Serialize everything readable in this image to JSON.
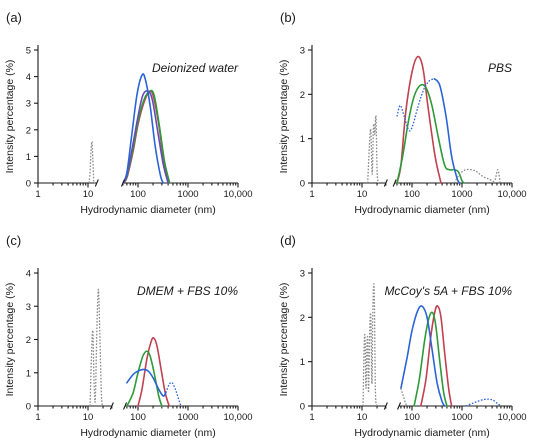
{
  "colors": {
    "red": "#c0414f",
    "green": "#2e9a3a",
    "purple": "#6a4bb5",
    "blue": "#2b64d6",
    "dotted": "#8a8a8a"
  },
  "chart_data": [
    {
      "type": "line",
      "panel": "(a)",
      "title": "Deionized water",
      "xlabel": "Hydrodynamic diameter (nm)",
      "ylabel": "Intensity percentage (%)",
      "xscale": "log",
      "xlim": [
        1,
        10000
      ],
      "xbreak": [
        15,
        50
      ],
      "ylim": [
        0,
        5
      ],
      "xticks": [
        "1",
        "10",
        "100",
        "1000",
        "10,000"
      ],
      "yticks": [
        "0",
        "1",
        "2",
        "3",
        "4",
        "5"
      ],
      "series": [
        {
          "color": "red",
          "style": "solid",
          "points": [
            [
              50,
              0
            ],
            [
              60,
              0.2
            ],
            [
              80,
              1.2
            ],
            [
              100,
              2.2
            ],
            [
              130,
              3.0
            ],
            [
              165,
              3.4
            ],
            [
              200,
              3.3
            ],
            [
              260,
              2.2
            ],
            [
              330,
              0.8
            ],
            [
              420,
              0
            ]
          ]
        },
        {
          "color": "green",
          "style": "solid",
          "points": [
            [
              50,
              0
            ],
            [
              60,
              0.25
            ],
            [
              80,
              1.3
            ],
            [
              100,
              2.3
            ],
            [
              130,
              3.1
            ],
            [
              170,
              3.45
            ],
            [
              210,
              3.3
            ],
            [
              270,
              2.1
            ],
            [
              340,
              0.8
            ],
            [
              430,
              0
            ]
          ]
        },
        {
          "color": "purple",
          "style": "solid",
          "points": [
            [
              50,
              0
            ],
            [
              60,
              0.3
            ],
            [
              80,
              1.5
            ],
            [
              100,
              2.5
            ],
            [
              125,
              3.3
            ],
            [
              160,
              3.45
            ],
            [
              195,
              3.1
            ],
            [
              250,
              1.9
            ],
            [
              320,
              0.7
            ],
            [
              400,
              0
            ]
          ]
        },
        {
          "color": "blue",
          "style": "solid",
          "points": [
            [
              50,
              0
            ],
            [
              60,
              0.4
            ],
            [
              75,
              1.8
            ],
            [
              95,
              3.3
            ],
            [
              120,
              4.05
            ],
            [
              140,
              3.9
            ],
            [
              175,
              2.9
            ],
            [
              220,
              1.4
            ],
            [
              280,
              0.3
            ],
            [
              320,
              0
            ]
          ]
        },
        {
          "color": "dotted",
          "style": "dotted",
          "points": [
            [
              10.5,
              0
            ],
            [
              11,
              0.4
            ],
            [
              11.5,
              1.2
            ],
            [
              12,
              1.55
            ],
            [
              12.5,
              0.9
            ],
            [
              13,
              0.1
            ],
            [
              13.5,
              0
            ]
          ]
        }
      ]
    },
    {
      "type": "line",
      "panel": "(b)",
      "title": "PBS",
      "xlabel": "Hydrodynamic diameter (nm)",
      "ylabel": "Intensity percentage (%)",
      "xscale": "log",
      "xlim": [
        1,
        10000
      ],
      "xbreak": [
        30,
        45
      ],
      "ylim": [
        0,
        3
      ],
      "xticks": [
        "1",
        "10",
        "100",
        "1000",
        "10,000"
      ],
      "yticks": [
        "0",
        "1",
        "2",
        "3"
      ],
      "series": [
        {
          "color": "red",
          "style": "solid",
          "points": [
            [
              50,
              0
            ],
            [
              60,
              0.4
            ],
            [
              75,
              1.6
            ],
            [
              100,
              2.5
            ],
            [
              130,
              2.85
            ],
            [
              165,
              2.6
            ],
            [
              210,
              1.7
            ],
            [
              290,
              0.6
            ],
            [
              380,
              0
            ]
          ]
        },
        {
          "color": "green",
          "style": "solid",
          "points": [
            [
              50,
              0
            ],
            [
              65,
              0.6
            ],
            [
              85,
              1.4
            ],
            [
              110,
              1.95
            ],
            [
              145,
              2.2
            ],
            [
              190,
              2.15
            ],
            [
              250,
              1.75
            ],
            [
              340,
              1.0
            ],
            [
              450,
              0.4
            ],
            [
              560,
              0.3
            ],
            [
              700,
              0.3
            ],
            [
              850,
              0.25
            ],
            [
              1000,
              0.05
            ],
            [
              1100,
              0
            ]
          ]
        },
        {
          "color": "blue",
          "style": "solid",
          "points": [
            [
              280,
              2.35
            ],
            [
              360,
              2.2
            ],
            [
              480,
              1.5
            ],
            [
              620,
              0.6
            ],
            [
              800,
              0.1
            ],
            [
              900,
              0
            ]
          ]
        },
        {
          "color": "blue",
          "style": "dotted",
          "points": [
            [
              50,
              1.5
            ],
            [
              58,
              1.75
            ],
            [
              70,
              1.5
            ],
            [
              85,
              1.2
            ],
            [
              100,
              1.25
            ],
            [
              130,
              1.7
            ],
            [
              170,
              2.1
            ],
            [
              220,
              2.3
            ],
            [
              280,
              2.35
            ]
          ]
        },
        {
          "color": "dotted",
          "style": "dotted",
          "points": [
            [
              700,
              0
            ],
            [
              900,
              0.2
            ],
            [
              1200,
              0.3
            ],
            [
              1800,
              0.28
            ],
            [
              2600,
              0.15
            ],
            [
              3600,
              0.08
            ],
            [
              4500,
              0.05
            ],
            [
              5200,
              0.3
            ],
            [
              5800,
              0
            ]
          ]
        },
        {
          "color": "dotted",
          "style": "dotted",
          "points": [
            [
              13,
              0
            ],
            [
              14,
              0.8
            ],
            [
              15,
              1.2
            ],
            [
              16,
              0.2
            ],
            [
              17,
              1.3
            ],
            [
              18,
              1.1
            ],
            [
              19,
              1.5
            ],
            [
              20,
              0.3
            ],
            [
              21,
              0
            ]
          ]
        }
      ]
    },
    {
      "type": "line",
      "panel": "(c)",
      "title": "DMEM + FBS 10%",
      "xlabel": "Hydrodynamic diameter (nm)",
      "ylabel": "Intensity percentage (%)",
      "xscale": "log",
      "xlim": [
        1,
        10000
      ],
      "xbreak": [
        30,
        55
      ],
      "ylim": [
        0,
        4
      ],
      "xticks": [
        "1",
        "10",
        "100",
        "1000",
        "10,000"
      ],
      "yticks": [
        "0",
        "1",
        "2",
        "3",
        "4"
      ],
      "series": [
        {
          "color": "red",
          "style": "solid",
          "points": [
            [
              100,
              0
            ],
            [
              120,
              0.5
            ],
            [
              150,
              1.4
            ],
            [
              180,
              1.9
            ],
            [
              205,
              2.05
            ],
            [
              240,
              1.8
            ],
            [
              290,
              1.1
            ],
            [
              350,
              0.4
            ],
            [
              420,
              0
            ]
          ]
        },
        {
          "color": "green",
          "style": "solid",
          "points": [
            [
              60,
              0
            ],
            [
              80,
              0.4
            ],
            [
              100,
              1.0
            ],
            [
              125,
              1.5
            ],
            [
              150,
              1.65
            ],
            [
              175,
              1.5
            ],
            [
              210,
              1.0
            ],
            [
              260,
              0.3
            ],
            [
              300,
              0
            ]
          ]
        },
        {
          "color": "blue",
          "style": "solid",
          "points": [
            [
              60,
              0.7
            ],
            [
              80,
              0.95
            ],
            [
              100,
              1.05
            ],
            [
              130,
              1.1
            ],
            [
              160,
              1.05
            ],
            [
              200,
              0.85
            ],
            [
              260,
              0.5
            ],
            [
              320,
              0.3
            ],
            [
              360,
              0.4
            ]
          ]
        },
        {
          "color": "blue",
          "style": "dotted",
          "points": [
            [
              360,
              0.4
            ],
            [
              420,
              0.65
            ],
            [
              480,
              0.7
            ],
            [
              560,
              0.5
            ],
            [
              650,
              0.2
            ],
            [
              720,
              0
            ]
          ]
        },
        {
          "color": "dotted",
          "style": "dotted",
          "points": [
            [
              11,
              0
            ],
            [
              11.8,
              1.6
            ],
            [
              12.5,
              2.25
            ],
            [
              13.2,
              0.8
            ],
            [
              14,
              0.2
            ],
            [
              15.2,
              2.6
            ],
            [
              16.2,
              3.5
            ],
            [
              17.2,
              2.2
            ],
            [
              18.5,
              0.4
            ],
            [
              19.5,
              0
            ]
          ]
        }
      ]
    },
    {
      "type": "line",
      "panel": "(d)",
      "title": "McCoy's 5A + FBS 10%",
      "xlabel": "Hydrodynamic diameter (nm)",
      "ylabel": "Intensity percentage (%)",
      "xscale": "log",
      "xlim": [
        1,
        10000
      ],
      "xbreak": [
        30,
        55
      ],
      "ylim": [
        0,
        3
      ],
      "xticks": [
        "1",
        "10",
        "100",
        "1000",
        "10,000"
      ],
      "yticks": [
        "0",
        "1",
        "2",
        "3"
      ],
      "series": [
        {
          "color": "red",
          "style": "solid",
          "points": [
            [
              150,
              0
            ],
            [
              190,
              0.6
            ],
            [
              240,
              1.6
            ],
            [
              290,
              2.15
            ],
            [
              330,
              2.25
            ],
            [
              380,
              2.0
            ],
            [
              450,
              1.2
            ],
            [
              540,
              0.4
            ],
            [
              620,
              0
            ]
          ]
        },
        {
          "color": "green",
          "style": "solid",
          "points": [
            [
              110,
              0
            ],
            [
              140,
              0.6
            ],
            [
              180,
              1.5
            ],
            [
              220,
              2.0
            ],
            [
              260,
              2.1
            ],
            [
              300,
              1.8
            ],
            [
              360,
              1.0
            ],
            [
              430,
              0.3
            ],
            [
              500,
              0
            ]
          ]
        },
        {
          "color": "blue",
          "style": "solid",
          "points": [
            [
              60,
              0.4
            ],
            [
              80,
              1.1
            ],
            [
              100,
              1.7
            ],
            [
              130,
              2.15
            ],
            [
              160,
              2.25
            ],
            [
              200,
              2.0
            ],
            [
              250,
              1.3
            ],
            [
              320,
              0.5
            ],
            [
              400,
              0.1
            ],
            [
              450,
              0
            ]
          ]
        },
        {
          "color": "blue",
          "style": "dotted",
          "points": [
            [
              1200,
              0
            ],
            [
              1800,
              0.08
            ],
            [
              2800,
              0.15
            ],
            [
              4000,
              0.14
            ],
            [
              5200,
              0.05
            ],
            [
              6000,
              0
            ]
          ]
        },
        {
          "color": "dotted",
          "style": "dotted",
          "points": [
            [
              60,
              0.4
            ],
            [
              68,
              0.2
            ],
            [
              75,
              0.05
            ],
            [
              82,
              0
            ]
          ]
        },
        {
          "color": "dotted",
          "style": "dotted",
          "points": [
            [
              10.5,
              0
            ],
            [
              11,
              1.3
            ],
            [
              11.5,
              1.55
            ],
            [
              12,
              0.4
            ],
            [
              12.5,
              1.3
            ],
            [
              13,
              1.5
            ],
            [
              13.5,
              0.3
            ],
            [
              14.2,
              1.6
            ],
            [
              15,
              2.05
            ],
            [
              15.8,
              0.5
            ],
            [
              16.5,
              2.2
            ],
            [
              17.5,
              2.65
            ],
            [
              18.5,
              0.4
            ],
            [
              19.5,
              0
            ]
          ]
        }
      ]
    }
  ]
}
